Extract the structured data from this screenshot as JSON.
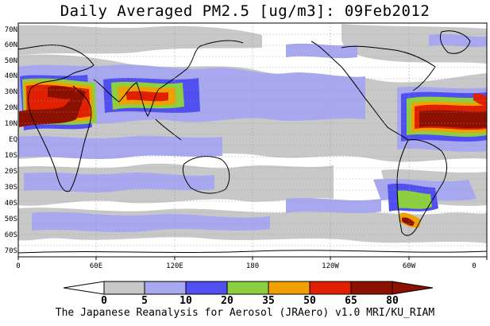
{
  "title": "Daily Averaged PM2.5 [ug/m3]: 09Feb2012",
  "footer": "The Japanese Reanalysis for Aerosol (JRAero) v1.0 MRI/KU_RIAM",
  "lat_labels": [
    "70N",
    "60N",
    "50N",
    "40N",
    "30N",
    "20N",
    "10N",
    "EQ",
    "10S",
    "20S",
    "30S",
    "40S",
    "50S",
    "60S",
    "70S"
  ],
  "lon_labels": [
    "0",
    "60E",
    "120E",
    "180",
    "120W",
    "60W",
    "0"
  ],
  "colorbar": {
    "levels": [
      "0",
      "5",
      "10",
      "20",
      "35",
      "50",
      "65",
      "80"
    ],
    "colors": [
      "#ffffff",
      "#c8c8c8",
      "#a8a8f0",
      "#5050f0",
      "#8cd040",
      "#f0a000",
      "#e02000",
      "#8c1000"
    ]
  }
}
